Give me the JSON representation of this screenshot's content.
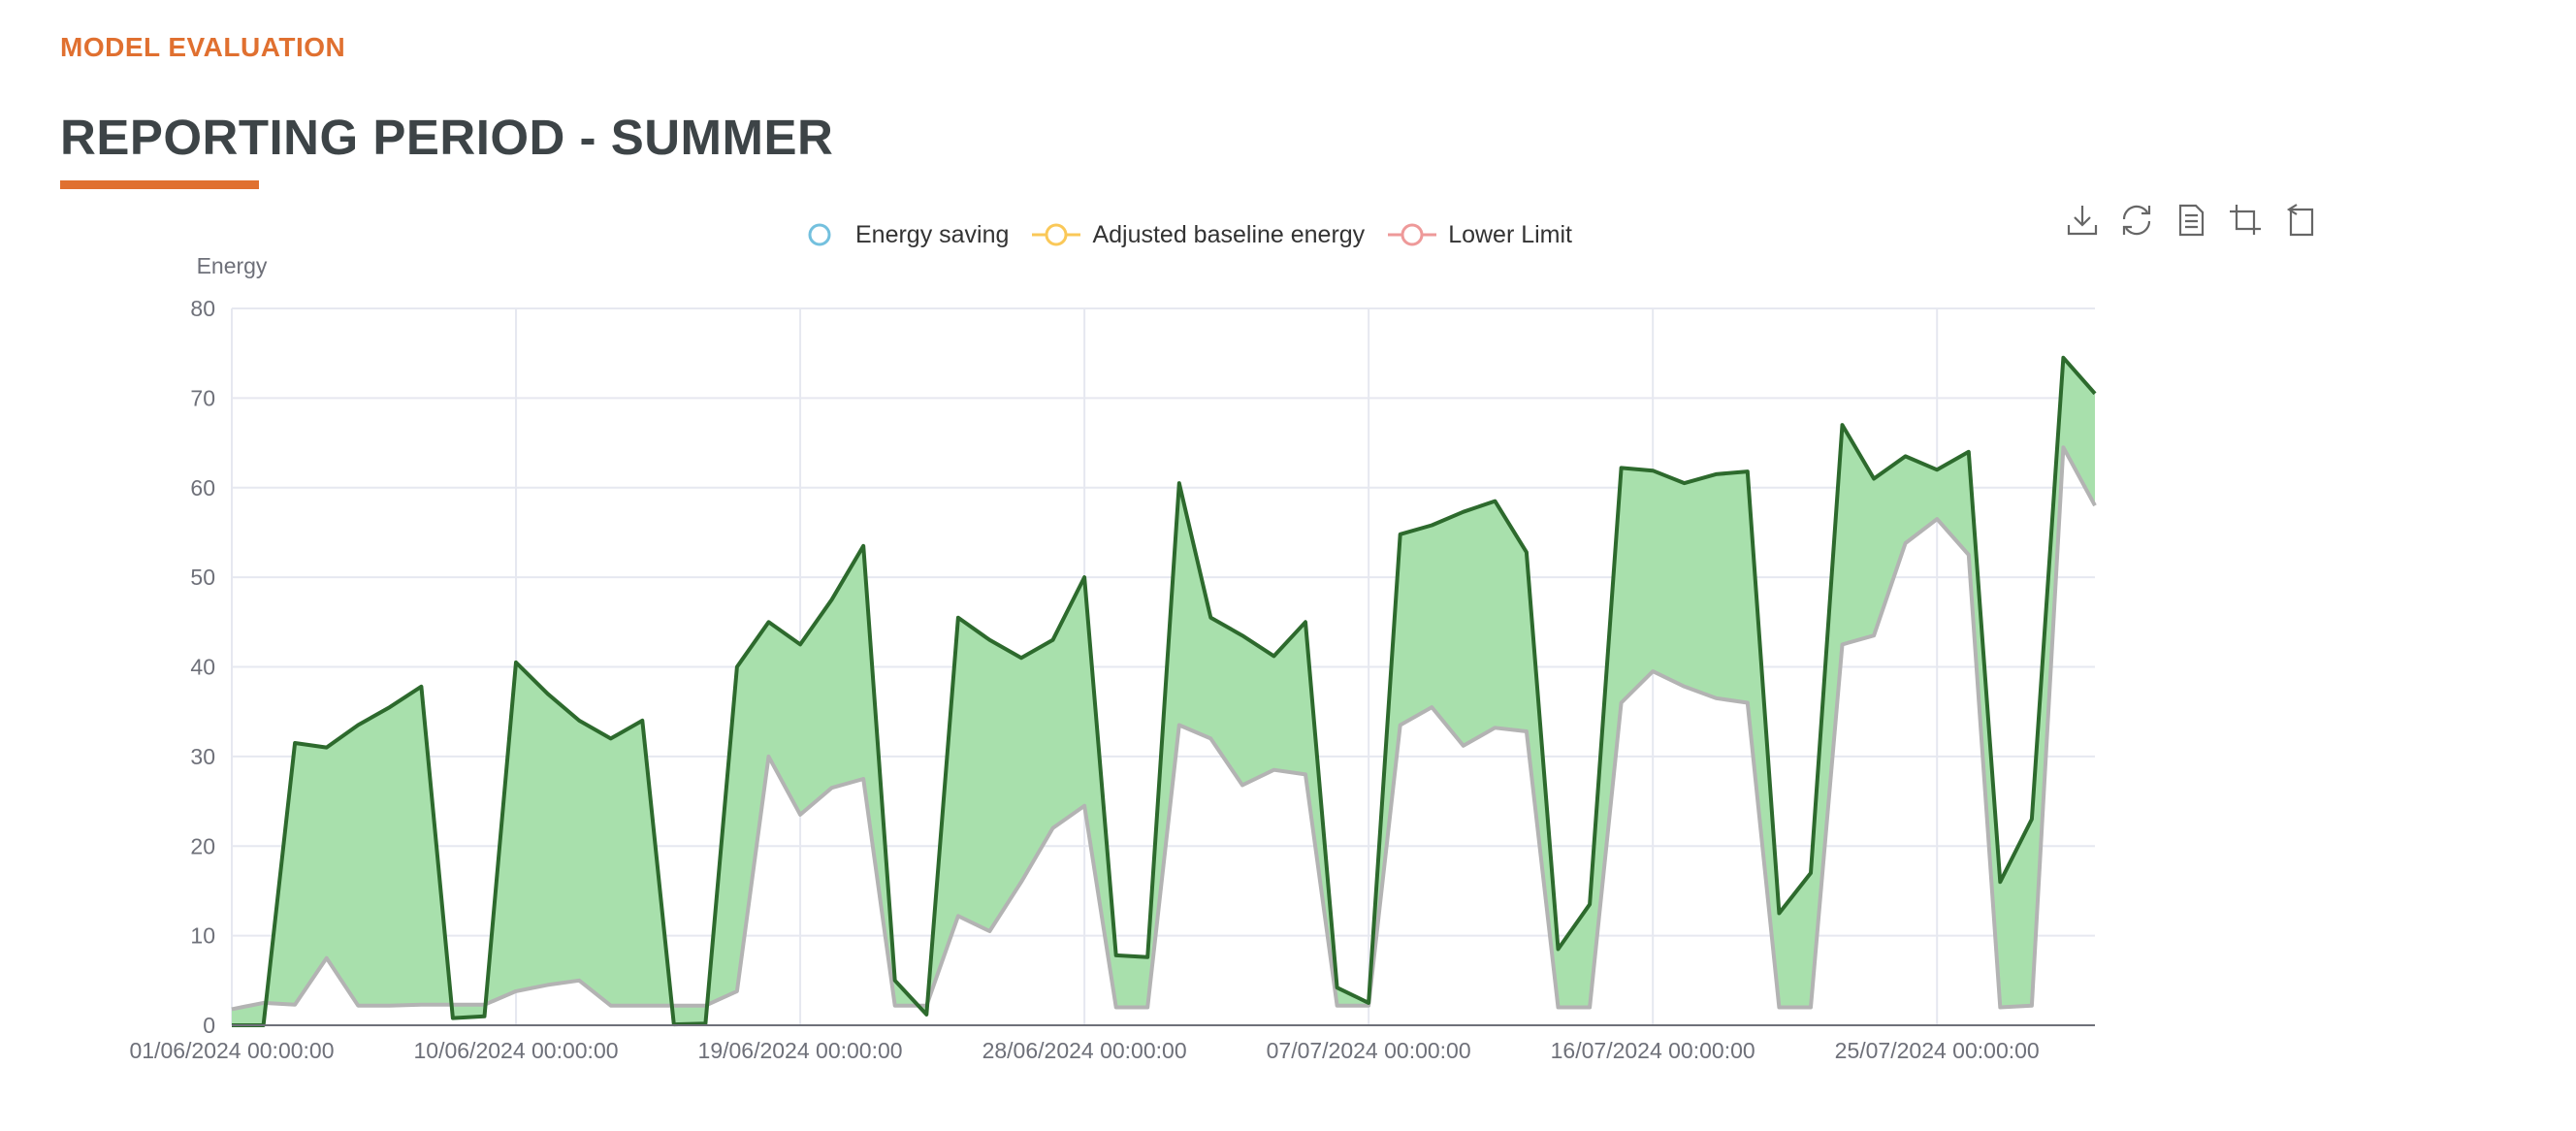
{
  "header": {
    "section_label": "MODEL EVALUATION",
    "title": "REPORTING PERIOD - SUMMER"
  },
  "colors": {
    "accent": "#e07030",
    "fill": "#a8e0ac",
    "line": "#2d6a2d",
    "lower": "#b3b3b3",
    "grid": "#e6e8f0",
    "axis": "#6e7079"
  },
  "toolbox": [
    "download-icon",
    "refresh-icon",
    "data-view-icon",
    "crop-zoom-icon",
    "zoom-reset-icon"
  ],
  "chart_data": {
    "type": "area",
    "ylabel": "Energy",
    "ylim": [
      0,
      80
    ],
    "yticks": [
      0,
      10,
      20,
      30,
      40,
      50,
      60,
      70,
      80
    ],
    "xticks": [
      "01/06/2024 00:00:00",
      "10/06/2024 00:00:00",
      "19/06/2024 00:00:00",
      "28/06/2024 00:00:00",
      "07/07/2024 00:00:00",
      "16/07/2024 00:00:00",
      "25/07/2024 00:00:00"
    ],
    "legend_position": "top",
    "x_start": "01/06/2024",
    "x_end": "29/07/2024",
    "grid": true,
    "series": [
      {
        "name": "Energy saving",
        "color": "#73c0de",
        "note": "band between Lower Limit and Adjusted baseline energy"
      },
      {
        "name": "Adjusted baseline energy",
        "color": "#fac858",
        "values": [
          0,
          0,
          31.5,
          31,
          33.5,
          35.5,
          37.8,
          0.8,
          1,
          40.5,
          37,
          34,
          32,
          34,
          0.1,
          0.2,
          40,
          45,
          42.5,
          47.5,
          53.5,
          5,
          1.2,
          45.5,
          43,
          41,
          43,
          50,
          7.8,
          7.6,
          60.5,
          45.5,
          43.5,
          41.2,
          45,
          4.2,
          2.5,
          54.8,
          55.8,
          57.3,
          58.5,
          52.8,
          8.5,
          13.5,
          62.2,
          61.9,
          60.5,
          61.5,
          61.8,
          12.5,
          17,
          67,
          61,
          63.5,
          62,
          64,
          16,
          23,
          74.5,
          70.5
        ]
      },
      {
        "name": "Lower Limit",
        "color": "#ee6666",
        "values": [
          1.8,
          2.5,
          2.3,
          7.5,
          2.2,
          2.2,
          2.3,
          2.3,
          2.3,
          3.8,
          4.5,
          5,
          2.2,
          2.2,
          2.2,
          2.2,
          3.8,
          30,
          23.5,
          26.5,
          27.5,
          2.2,
          2.2,
          12.2,
          10.5,
          16,
          22,
          24.5,
          2,
          2,
          33.5,
          32,
          26.8,
          28.5,
          28,
          2.2,
          2.2,
          33.5,
          35.5,
          31.2,
          33.2,
          32.8,
          2,
          2,
          36,
          39.5,
          37.8,
          36.5,
          36,
          2,
          2,
          42.5,
          43.5,
          53.8,
          56.5,
          52.5,
          2,
          2.2,
          64.5,
          58
        ]
      }
    ]
  }
}
